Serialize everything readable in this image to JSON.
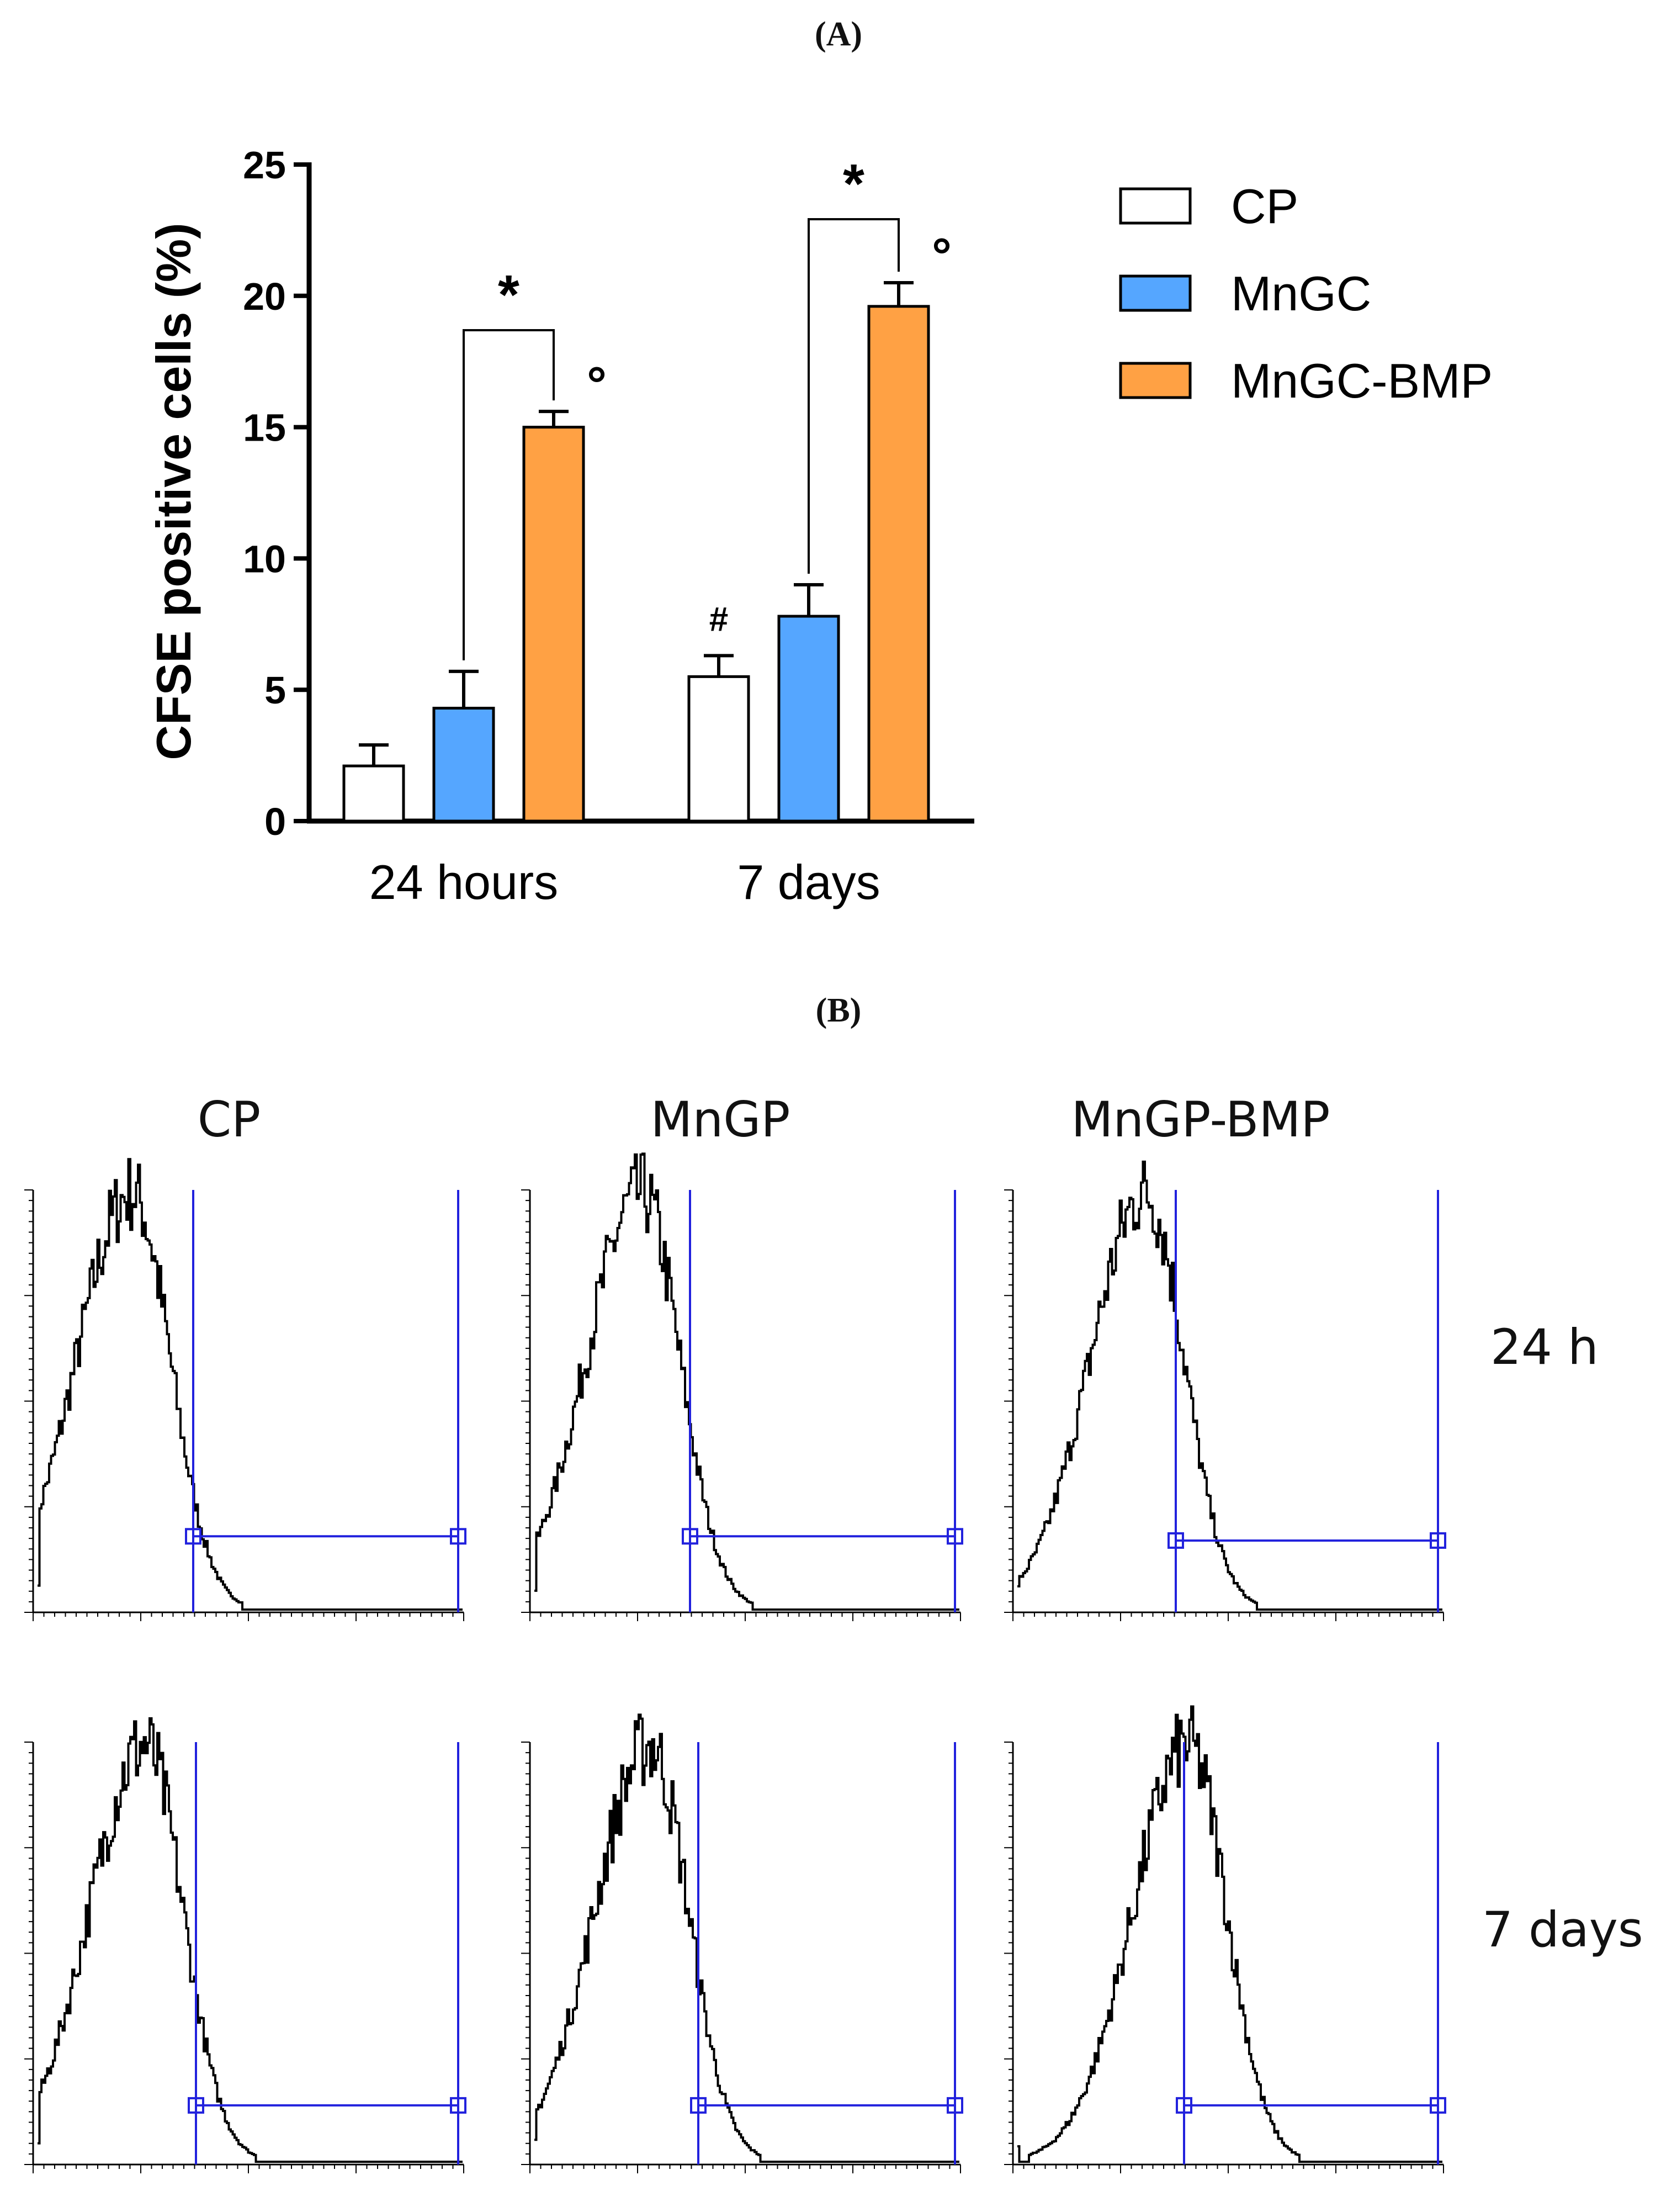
{
  "panel_a_label": "(A)",
  "panel_b_label": "(B)",
  "chart_data": [
    {
      "type": "bar",
      "ylabel": "CFSE positive cells (%)",
      "xlabel": "",
      "ylim": [
        0,
        25
      ],
      "yticks": [
        "0",
        "5",
        "10",
        "15",
        "20",
        "25"
      ],
      "categories": [
        "24 hours",
        "7 days"
      ],
      "series": [
        {
          "name": "CP",
          "color": "#ffffff",
          "values": [
            2.1,
            5.5
          ],
          "errors": [
            0.8,
            0.8
          ]
        },
        {
          "name": "MnGC",
          "color": "#55a6ff",
          "values": [
            4.3,
            7.8
          ],
          "errors": [
            1.4,
            1.2
          ]
        },
        {
          "name": "MnGC-BMP",
          "color": "#ffa144",
          "values": [
            15.0,
            19.6
          ],
          "errors": [
            0.6,
            0.9
          ]
        }
      ],
      "annotations": {
        "star": "*",
        "circle": "°",
        "hash": "#"
      },
      "legend_position": "right"
    },
    {
      "type": "histogram-grid",
      "columns": [
        "CP",
        "MnGP",
        "MnGP-BMP"
      ],
      "rows": [
        "24 h",
        "7 days"
      ],
      "gate_color": "#2222dd"
    }
  ]
}
